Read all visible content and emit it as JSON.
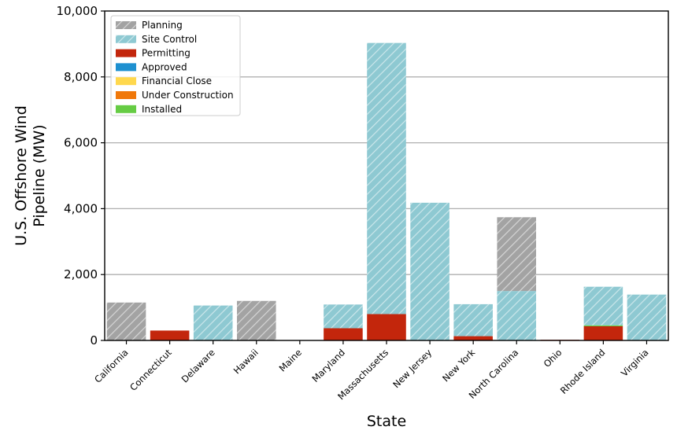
{
  "chart_data": {
    "type": "bar",
    "stacked": true,
    "xlabel": "State",
    "ylabel_lines": [
      "U.S. Offshore Wind",
      "Pipeline (MW)"
    ],
    "ylim": [
      0,
      10000
    ],
    "yticks": [
      0,
      2000,
      4000,
      6000,
      8000,
      10000
    ],
    "ytick_labels": [
      "0",
      "2,000",
      "4,000",
      "6,000",
      "8,000",
      "10,000"
    ],
    "grid": "horizontal",
    "legend_position": "top-left",
    "categories": [
      "California",
      "Connecticut",
      "Delaware",
      "Hawaii",
      "Maine",
      "Maryland",
      "Massachusetts",
      "New Jersey",
      "New York",
      "North Carolina",
      "Ohio",
      "Rhode Island",
      "Virginia"
    ],
    "series": [
      {
        "name": "Permitting",
        "color": "#c3260c",
        "pattern": "solid",
        "values": [
          0,
          300,
          0,
          0,
          12,
          370,
          800,
          0,
          130,
          0,
          20,
          430,
          0
        ]
      },
      {
        "name": "Installed",
        "color": "#66cc44",
        "pattern": "solid",
        "values": [
          0,
          0,
          0,
          0,
          0,
          0,
          0,
          0,
          0,
          0,
          0,
          30,
          12
        ]
      },
      {
        "name": "Site Control",
        "color": "#8ec9d2",
        "pattern": "hatch",
        "values": [
          0,
          0,
          1060,
          0,
          0,
          720,
          8230,
          4180,
          970,
          1500,
          0,
          1170,
          1380
        ]
      },
      {
        "name": "Planning",
        "color": "#a3a3a3",
        "pattern": "hatch",
        "values": [
          1150,
          0,
          0,
          1200,
          0,
          0,
          0,
          0,
          0,
          2240,
          0,
          0,
          0
        ]
      }
    ],
    "legend": [
      {
        "name": "Planning",
        "color": "#a3a3a3",
        "pattern": "hatch"
      },
      {
        "name": "Site Control",
        "color": "#8ec9d2",
        "pattern": "hatch"
      },
      {
        "name": "Permitting",
        "color": "#c3260c",
        "pattern": "solid"
      },
      {
        "name": "Approved",
        "color": "#1e90d0",
        "pattern": "solid"
      },
      {
        "name": "Financial Close",
        "color": "#ffd84d",
        "pattern": "solid"
      },
      {
        "name": "Under Construction",
        "color": "#f0780a",
        "pattern": "solid"
      },
      {
        "name": "Installed",
        "color": "#66cc44",
        "pattern": "solid"
      }
    ]
  }
}
